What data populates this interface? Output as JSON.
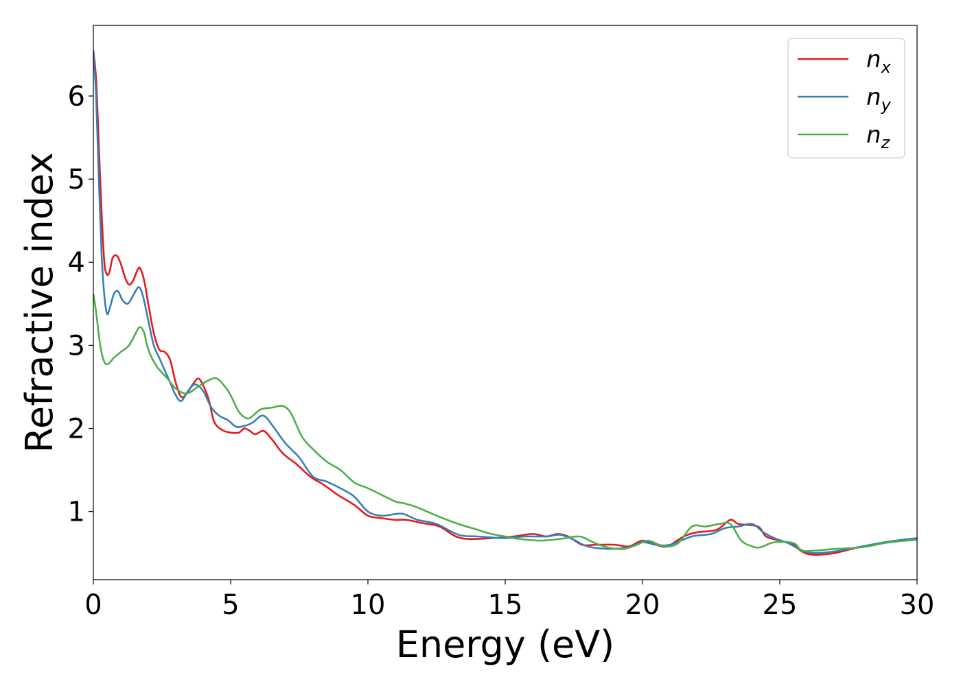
{
  "chart_data": {
    "type": "line",
    "title": "",
    "xlabel": "Energy (eV)",
    "ylabel": "Refractive index",
    "xlim": [
      0,
      30
    ],
    "ylim": [
      0.18,
      6.85
    ],
    "xticks": [
      "0",
      "5",
      "10",
      "15",
      "20",
      "25",
      "30"
    ],
    "yticks": [
      "1",
      "2",
      "3",
      "4",
      "5",
      "6"
    ],
    "grid": false,
    "legend_position": "top-right",
    "series": [
      {
        "name": "n",
        "subscript": "x",
        "color": "#e41a1c",
        "points": [
          [
            0,
            6.55
          ],
          [
            0.1,
            6.2
          ],
          [
            0.2,
            5.4
          ],
          [
            0.3,
            4.6
          ],
          [
            0.4,
            4.0
          ],
          [
            0.5,
            3.85
          ],
          [
            0.6,
            3.9
          ],
          [
            0.7,
            4.05
          ],
          [
            0.85,
            4.08
          ],
          [
            1.0,
            3.98
          ],
          [
            1.15,
            3.82
          ],
          [
            1.3,
            3.73
          ],
          [
            1.45,
            3.78
          ],
          [
            1.6,
            3.9
          ],
          [
            1.7,
            3.93
          ],
          [
            1.85,
            3.78
          ],
          [
            2.0,
            3.5
          ],
          [
            2.2,
            3.15
          ],
          [
            2.4,
            2.95
          ],
          [
            2.6,
            2.92
          ],
          [
            2.8,
            2.82
          ],
          [
            3.0,
            2.55
          ],
          [
            3.2,
            2.38
          ],
          [
            3.4,
            2.42
          ],
          [
            3.6,
            2.52
          ],
          [
            3.8,
            2.6
          ],
          [
            3.95,
            2.55
          ],
          [
            4.2,
            2.35
          ],
          [
            4.4,
            2.08
          ],
          [
            4.7,
            1.98
          ],
          [
            5.0,
            1.95
          ],
          [
            5.3,
            1.95
          ],
          [
            5.5,
            2.0
          ],
          [
            5.7,
            1.97
          ],
          [
            5.9,
            1.93
          ],
          [
            6.2,
            1.97
          ],
          [
            6.5,
            1.87
          ],
          [
            6.9,
            1.7
          ],
          [
            7.4,
            1.57
          ],
          [
            7.9,
            1.42
          ],
          [
            8.4,
            1.32
          ],
          [
            8.9,
            1.2
          ],
          [
            9.5,
            1.08
          ],
          [
            10.0,
            0.95
          ],
          [
            10.5,
            0.92
          ],
          [
            11.0,
            0.9
          ],
          [
            11.4,
            0.9
          ],
          [
            12.0,
            0.86
          ],
          [
            12.6,
            0.82
          ],
          [
            13.2,
            0.7
          ],
          [
            13.7,
            0.67
          ],
          [
            14.5,
            0.68
          ],
          [
            15.3,
            0.7
          ],
          [
            16.0,
            0.73
          ],
          [
            16.5,
            0.7
          ],
          [
            16.9,
            0.73
          ],
          [
            17.3,
            0.7
          ],
          [
            17.8,
            0.6
          ],
          [
            18.3,
            0.6
          ],
          [
            19.0,
            0.6
          ],
          [
            19.5,
            0.58
          ],
          [
            20.0,
            0.65
          ],
          [
            20.5,
            0.6
          ],
          [
            20.9,
            0.58
          ],
          [
            21.5,
            0.7
          ],
          [
            22.0,
            0.75
          ],
          [
            22.7,
            0.78
          ],
          [
            23.2,
            0.9
          ],
          [
            23.5,
            0.85
          ],
          [
            24.2,
            0.82
          ],
          [
            24.5,
            0.7
          ],
          [
            25.0,
            0.65
          ],
          [
            25.5,
            0.6
          ],
          [
            25.8,
            0.52
          ],
          [
            26.2,
            0.48
          ],
          [
            27.0,
            0.5
          ],
          [
            28.0,
            0.58
          ],
          [
            29.0,
            0.63
          ],
          [
            30,
            0.67
          ]
        ]
      },
      {
        "name": "n",
        "subscript": "y",
        "color": "#377eb8",
        "points": [
          [
            0,
            6.55
          ],
          [
            0.1,
            6.0
          ],
          [
            0.2,
            5.0
          ],
          [
            0.3,
            4.1
          ],
          [
            0.4,
            3.6
          ],
          [
            0.5,
            3.38
          ],
          [
            0.6,
            3.45
          ],
          [
            0.75,
            3.62
          ],
          [
            0.9,
            3.65
          ],
          [
            1.05,
            3.55
          ],
          [
            1.25,
            3.5
          ],
          [
            1.45,
            3.6
          ],
          [
            1.65,
            3.7
          ],
          [
            1.8,
            3.6
          ],
          [
            2.0,
            3.3
          ],
          [
            2.2,
            3.0
          ],
          [
            2.4,
            2.85
          ],
          [
            2.6,
            2.7
          ],
          [
            2.8,
            2.55
          ],
          [
            3.0,
            2.4
          ],
          [
            3.2,
            2.33
          ],
          [
            3.45,
            2.45
          ],
          [
            3.7,
            2.53
          ],
          [
            4.0,
            2.45
          ],
          [
            4.3,
            2.25
          ],
          [
            4.6,
            2.15
          ],
          [
            4.9,
            2.1
          ],
          [
            5.2,
            2.02
          ],
          [
            5.5,
            2.03
          ],
          [
            5.8,
            2.07
          ],
          [
            6.1,
            2.15
          ],
          [
            6.3,
            2.13
          ],
          [
            6.6,
            2.0
          ],
          [
            7.0,
            1.82
          ],
          [
            7.5,
            1.65
          ],
          [
            8.0,
            1.42
          ],
          [
            8.5,
            1.36
          ],
          [
            9.0,
            1.28
          ],
          [
            9.5,
            1.18
          ],
          [
            10.0,
            1.0
          ],
          [
            10.5,
            0.95
          ],
          [
            11.0,
            0.97
          ],
          [
            11.3,
            0.97
          ],
          [
            11.8,
            0.9
          ],
          [
            12.5,
            0.85
          ],
          [
            13.3,
            0.72
          ],
          [
            14.0,
            0.7
          ],
          [
            15.0,
            0.68
          ],
          [
            15.7,
            0.7
          ],
          [
            16.5,
            0.7
          ],
          [
            17.0,
            0.72
          ],
          [
            17.5,
            0.66
          ],
          [
            18.0,
            0.58
          ],
          [
            18.8,
            0.55
          ],
          [
            19.5,
            0.57
          ],
          [
            20.0,
            0.63
          ],
          [
            20.5,
            0.6
          ],
          [
            21.0,
            0.6
          ],
          [
            21.8,
            0.7
          ],
          [
            22.5,
            0.73
          ],
          [
            23.0,
            0.8
          ],
          [
            23.5,
            0.82
          ],
          [
            24.0,
            0.85
          ],
          [
            24.4,
            0.75
          ],
          [
            24.8,
            0.68
          ],
          [
            25.3,
            0.62
          ],
          [
            25.7,
            0.55
          ],
          [
            26.2,
            0.5
          ],
          [
            27.0,
            0.52
          ],
          [
            28.0,
            0.58
          ],
          [
            29.0,
            0.64
          ],
          [
            30,
            0.68
          ]
        ]
      },
      {
        "name": "n",
        "subscript": "z",
        "color": "#4daf4a",
        "points": [
          [
            0,
            3.62
          ],
          [
            0.1,
            3.4
          ],
          [
            0.25,
            3.0
          ],
          [
            0.4,
            2.8
          ],
          [
            0.55,
            2.78
          ],
          [
            0.75,
            2.85
          ],
          [
            1.0,
            2.92
          ],
          [
            1.3,
            3.0
          ],
          [
            1.55,
            3.15
          ],
          [
            1.7,
            3.22
          ],
          [
            1.85,
            3.15
          ],
          [
            2.0,
            2.95
          ],
          [
            2.3,
            2.75
          ],
          [
            2.7,
            2.6
          ],
          [
            3.0,
            2.48
          ],
          [
            3.4,
            2.42
          ],
          [
            3.8,
            2.5
          ],
          [
            4.2,
            2.58
          ],
          [
            4.5,
            2.6
          ],
          [
            4.8,
            2.5
          ],
          [
            5.0,
            2.4
          ],
          [
            5.3,
            2.2
          ],
          [
            5.6,
            2.12
          ],
          [
            5.8,
            2.15
          ],
          [
            6.1,
            2.23
          ],
          [
            6.5,
            2.25
          ],
          [
            6.9,
            2.27
          ],
          [
            7.2,
            2.18
          ],
          [
            7.6,
            1.9
          ],
          [
            8.0,
            1.75
          ],
          [
            8.5,
            1.6
          ],
          [
            9.0,
            1.5
          ],
          [
            9.5,
            1.35
          ],
          [
            10.0,
            1.28
          ],
          [
            10.5,
            1.2
          ],
          [
            11.0,
            1.12
          ],
          [
            11.3,
            1.1
          ],
          [
            11.8,
            1.05
          ],
          [
            12.5,
            0.95
          ],
          [
            13.3,
            0.85
          ],
          [
            14.0,
            0.78
          ],
          [
            14.5,
            0.73
          ],
          [
            15.0,
            0.7
          ],
          [
            15.5,
            0.67
          ],
          [
            16.3,
            0.65
          ],
          [
            17.0,
            0.67
          ],
          [
            17.7,
            0.7
          ],
          [
            18.2,
            0.63
          ],
          [
            18.7,
            0.57
          ],
          [
            19.3,
            0.55
          ],
          [
            19.8,
            0.6
          ],
          [
            20.2,
            0.65
          ],
          [
            20.8,
            0.58
          ],
          [
            21.3,
            0.62
          ],
          [
            21.8,
            0.82
          ],
          [
            22.3,
            0.82
          ],
          [
            22.8,
            0.85
          ],
          [
            23.2,
            0.85
          ],
          [
            23.6,
            0.65
          ],
          [
            24.0,
            0.58
          ],
          [
            24.3,
            0.57
          ],
          [
            24.8,
            0.63
          ],
          [
            25.5,
            0.62
          ],
          [
            25.8,
            0.53
          ],
          [
            26.3,
            0.53
          ],
          [
            27.0,
            0.55
          ],
          [
            28.0,
            0.57
          ],
          [
            29.0,
            0.63
          ],
          [
            30,
            0.66
          ]
        ]
      }
    ]
  }
}
